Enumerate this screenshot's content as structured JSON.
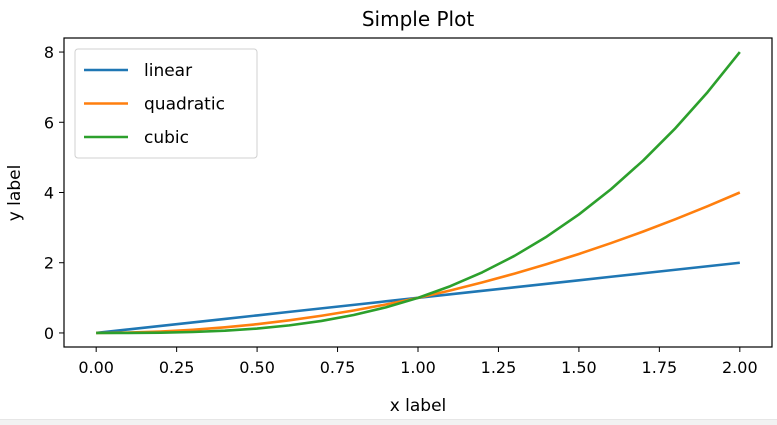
{
  "chart_data": {
    "type": "line",
    "title": "Simple Plot",
    "xlabel": "x label",
    "ylabel": "y label",
    "xlim": [
      -0.1,
      2.1
    ],
    "ylim": [
      -0.4,
      8.4
    ],
    "xticks": [
      "0.00",
      "0.25",
      "0.50",
      "0.75",
      "1.00",
      "1.25",
      "1.50",
      "1.75",
      "2.00"
    ],
    "yticks": [
      "0",
      "2",
      "4",
      "6",
      "8"
    ],
    "legend_position": "upper-left",
    "grid": false,
    "x": [
      0.0,
      0.1,
      0.2,
      0.3,
      0.4,
      0.5,
      0.6,
      0.7,
      0.8,
      0.9,
      1.0,
      1.1,
      1.2,
      1.3,
      1.4,
      1.5,
      1.6,
      1.7,
      1.8,
      1.9,
      2.0
    ],
    "series": [
      {
        "name": "linear",
        "color": "#1f77b4",
        "values": [
          0.0,
          0.1,
          0.2,
          0.3,
          0.4,
          0.5,
          0.6,
          0.7,
          0.8,
          0.9,
          1.0,
          1.1,
          1.2,
          1.3,
          1.4,
          1.5,
          1.6,
          1.7,
          1.8,
          1.9,
          2.0
        ]
      },
      {
        "name": "quadratic",
        "color": "#ff7f0e",
        "values": [
          0.0,
          0.01,
          0.04,
          0.09,
          0.16,
          0.25,
          0.36,
          0.49,
          0.64,
          0.81,
          1.0,
          1.21,
          1.44,
          1.69,
          1.96,
          2.25,
          2.56,
          2.89,
          3.24,
          3.61,
          4.0
        ]
      },
      {
        "name": "cubic",
        "color": "#2ca02c",
        "values": [
          0.0,
          0.001,
          0.008,
          0.027,
          0.064,
          0.125,
          0.216,
          0.343,
          0.512,
          0.729,
          1.0,
          1.331,
          1.728,
          2.197,
          2.744,
          3.375,
          4.096,
          4.913,
          5.832,
          6.859,
          8.0
        ]
      }
    ]
  }
}
